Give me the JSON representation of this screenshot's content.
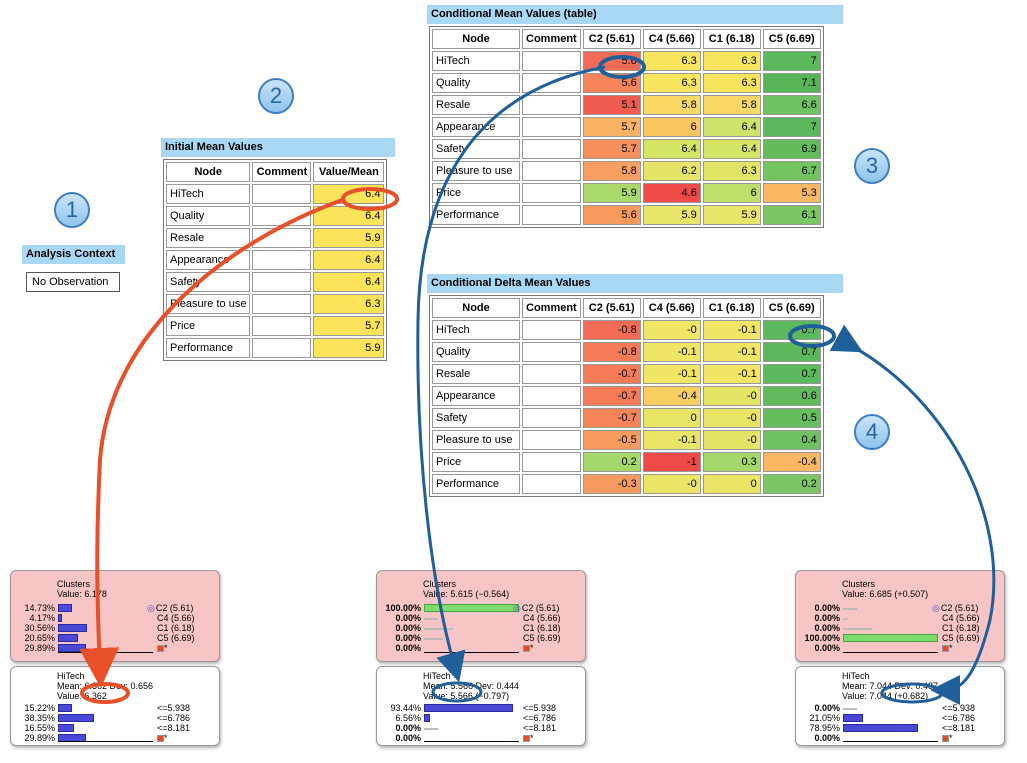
{
  "steps": [
    "1",
    "2",
    "3",
    "4"
  ],
  "analysis_context": {
    "title": "Analysis Context",
    "value": "No Observation"
  },
  "initial_mean": {
    "title": "Initial Mean Values",
    "headers": [
      "Node",
      "Comment",
      "Value/Mean"
    ],
    "rows": [
      {
        "node": "HiTech",
        "comment": "",
        "value": "6.4"
      },
      {
        "node": "Quality",
        "comment": "",
        "value": "6.4"
      },
      {
        "node": "Resale",
        "comment": "",
        "value": "5.9"
      },
      {
        "node": "Appearance",
        "comment": "",
        "value": "6.4"
      },
      {
        "node": "Safety",
        "comment": "",
        "value": "6.4"
      },
      {
        "node": "Pleasure to use",
        "comment": "",
        "value": "6.3"
      },
      {
        "node": "Price",
        "comment": "",
        "value": "5.7"
      },
      {
        "node": "Performance",
        "comment": "",
        "value": "5.9"
      }
    ],
    "value_color": "#fbe45a"
  },
  "cond_mean": {
    "title": "Conditional Mean Values (table)",
    "headers": [
      "Node",
      "Comment",
      "C2 (5.61)",
      "C4 (5.66)",
      "C1 (6.18)",
      "C5 (6.69)"
    ],
    "rows": [
      {
        "node": "HiTech",
        "comment": "",
        "cells": [
          {
            "v": "5.6",
            "c": "#f36b56"
          },
          {
            "v": "6.3",
            "c": "#f8e55e"
          },
          {
            "v": "6.3",
            "c": "#f8e55e"
          },
          {
            "v": "7",
            "c": "#5cb85c"
          }
        ]
      },
      {
        "node": "Quality",
        "comment": "",
        "cells": [
          {
            "v": "5.6",
            "c": "#f5845a"
          },
          {
            "v": "6.3",
            "c": "#f8e55e"
          },
          {
            "v": "6.3",
            "c": "#f8e55e"
          },
          {
            "v": "7.1",
            "c": "#57b457"
          }
        ]
      },
      {
        "node": "Resale",
        "comment": "",
        "cells": [
          {
            "v": "5.1",
            "c": "#ef5b4f"
          },
          {
            "v": "5.8",
            "c": "#f9d963"
          },
          {
            "v": "5.8",
            "c": "#f9d963"
          },
          {
            "v": "6.6",
            "c": "#6fc162"
          }
        ]
      },
      {
        "node": "Appearance",
        "comment": "",
        "cells": [
          {
            "v": "5.7",
            "c": "#f9b263"
          },
          {
            "v": "6",
            "c": "#fac660"
          },
          {
            "v": "6.4",
            "c": "#cde46a"
          },
          {
            "v": "7",
            "c": "#5cb85c"
          }
        ]
      },
      {
        "node": "Safety",
        "comment": "",
        "cells": [
          {
            "v": "5.7",
            "c": "#f78f5c"
          },
          {
            "v": "6.4",
            "c": "#d6e465"
          },
          {
            "v": "6.4",
            "c": "#d6e465"
          },
          {
            "v": "6.9",
            "c": "#63bb5c"
          }
        ]
      },
      {
        "node": "Pleasure to use",
        "comment": "",
        "cells": [
          {
            "v": "5.8",
            "c": "#f79e60"
          },
          {
            "v": "6.2",
            "c": "#e6e466"
          },
          {
            "v": "6.3",
            "c": "#e0e566"
          },
          {
            "v": "6.7",
            "c": "#74c363"
          }
        ]
      },
      {
        "node": "Price",
        "comment": "",
        "cells": [
          {
            "v": "5.9",
            "c": "#a9d96b"
          },
          {
            "v": "4.6",
            "c": "#ee4a47"
          },
          {
            "v": "6",
            "c": "#bee06a"
          },
          {
            "v": "5.3",
            "c": "#fbb864"
          }
        ]
      },
      {
        "node": "Performance",
        "comment": "",
        "cells": [
          {
            "v": "5.6",
            "c": "#f79a5d"
          },
          {
            "v": "5.9",
            "c": "#e8e56a"
          },
          {
            "v": "5.9",
            "c": "#e8e56a"
          },
          {
            "v": "6.1",
            "c": "#7cc665"
          }
        ]
      }
    ]
  },
  "cond_delta": {
    "title": "Conditional Delta Mean Values",
    "headers": [
      "Node",
      "Comment",
      "C2 (5.61)",
      "C4 (5.66)",
      "C1 (6.18)",
      "C5 (6.69)"
    ],
    "rows": [
      {
        "node": "HiTech",
        "comment": "",
        "cells": [
          {
            "v": "-0.8",
            "c": "#f36b56"
          },
          {
            "v": "-0",
            "c": "#f0e666"
          },
          {
            "v": "-0.1",
            "c": "#f0e666"
          },
          {
            "v": "0.7",
            "c": "#5cb85c"
          }
        ]
      },
      {
        "node": "Quality",
        "comment": "",
        "cells": [
          {
            "v": "-0.8",
            "c": "#f47a58"
          },
          {
            "v": "-0.1",
            "c": "#f0e666"
          },
          {
            "v": "-0.1",
            "c": "#f0e666"
          },
          {
            "v": "0.7",
            "c": "#5cb85c"
          }
        ]
      },
      {
        "node": "Resale",
        "comment": "",
        "cells": [
          {
            "v": "-0.7",
            "c": "#f47a58"
          },
          {
            "v": "-0.1",
            "c": "#f0e666"
          },
          {
            "v": "-0.1",
            "c": "#f0e666"
          },
          {
            "v": "0.7",
            "c": "#5cb85c"
          }
        ]
      },
      {
        "node": "Appearance",
        "comment": "",
        "cells": [
          {
            "v": "-0.7",
            "c": "#f47a58"
          },
          {
            "v": "-0.4",
            "c": "#f9cf62"
          },
          {
            "v": "-0",
            "c": "#e6e466"
          },
          {
            "v": "0.6",
            "c": "#62ba5d"
          }
        ]
      },
      {
        "node": "Safety",
        "comment": "",
        "cells": [
          {
            "v": "-0.7",
            "c": "#f58459"
          },
          {
            "v": "0",
            "c": "#e8e566"
          },
          {
            "v": "-0",
            "c": "#e8e566"
          },
          {
            "v": "0.5",
            "c": "#66bd5e"
          }
        ]
      },
      {
        "node": "Pleasure to use",
        "comment": "",
        "cells": [
          {
            "v": "-0.5",
            "c": "#f69a5d"
          },
          {
            "v": "-0.1",
            "c": "#eae566"
          },
          {
            "v": "-0",
            "c": "#e4e466"
          },
          {
            "v": "0.4",
            "c": "#6ec062"
          }
        ]
      },
      {
        "node": "Price",
        "comment": "",
        "cells": [
          {
            "v": "0.2",
            "c": "#a5d86b"
          },
          {
            "v": "-1",
            "c": "#ee4a47"
          },
          {
            "v": "0.3",
            "c": "#a5d86b"
          },
          {
            "v": "-0.4",
            "c": "#fbb864"
          }
        ]
      },
      {
        "node": "Performance",
        "comment": "",
        "cells": [
          {
            "v": "-0.3",
            "c": "#f79a5d"
          },
          {
            "v": "-0",
            "c": "#eae566"
          },
          {
            "v": "0",
            "c": "#eae566"
          },
          {
            "v": "0.2",
            "c": "#7cc665"
          }
        ]
      }
    ]
  },
  "monitors": [
    {
      "clusters": {
        "title": "Clusters",
        "value": "Value: 6.178",
        "rows": [
          {
            "pct": "14.73%",
            "label": "C2 (5.61)",
            "frac": 0.147,
            "style": "bar",
            "bold": false,
            "target": true
          },
          {
            "pct": "4.17%",
            "label": "C4 (5.66)",
            "frac": 0.042,
            "style": "bar",
            "bold": false,
            "target": false
          },
          {
            "pct": "30.56%",
            "label": "C1 (6.18)",
            "frac": 0.306,
            "style": "bar",
            "bold": false,
            "target": false
          },
          {
            "pct": "20.65%",
            "label": "C5 (6.69)",
            "frac": 0.207,
            "style": "bar",
            "bold": false,
            "target": false
          },
          {
            "pct": "29.89%",
            "label": "*",
            "frac": 0.299,
            "style": "bar",
            "bold": false,
            "target": false
          }
        ]
      },
      "hitech": {
        "title": "HiTech",
        "mean": "Mean: 6.362 Dev: 0.656",
        "value": "Value: 6.362",
        "rows": [
          {
            "pct": "15.22%",
            "label": "<=5.938",
            "frac": 0.152,
            "style": "bar",
            "bold": false
          },
          {
            "pct": "38.35%",
            "label": "<=6.786",
            "frac": 0.384,
            "style": "bar",
            "bold": false
          },
          {
            "pct": "16.55%",
            "label": "<=8.181",
            "frac": 0.166,
            "style": "bar",
            "bold": false
          },
          {
            "pct": "29.89%",
            "label": "*",
            "frac": 0.299,
            "style": "bar",
            "bold": false
          }
        ]
      }
    },
    {
      "clusters": {
        "title": "Clusters",
        "value": "Value: 5.615 (−0.564)",
        "rows": [
          {
            "pct": "100.00%",
            "label": "C2 (5.61)",
            "frac": 1.0,
            "style": "green",
            "bold": true,
            "target": true
          },
          {
            "pct": "0.00%",
            "label": "C4 (5.66)",
            "frac": 0.15,
            "style": "ghost",
            "bold": true,
            "target": false
          },
          {
            "pct": "0.00%",
            "label": "C1 (6.18)",
            "frac": 0.3,
            "style": "ghost",
            "bold": true,
            "target": false
          },
          {
            "pct": "0.00%",
            "label": "C5 (6.69)",
            "frac": 0.2,
            "style": "ghost",
            "bold": true,
            "target": false
          },
          {
            "pct": "0.00%",
            "label": "*",
            "frac": 0.0,
            "style": "ghost",
            "bold": true,
            "target": false
          }
        ]
      },
      "hitech": {
        "title": "HiTech",
        "mean": "Mean: 5.566 Dev: 0.444",
        "value": "Value: 5.566 (−0.797)",
        "rows": [
          {
            "pct": "93.44%",
            "label": "<=5.938",
            "frac": 0.934,
            "style": "bar",
            "bold": false
          },
          {
            "pct": "6.56%",
            "label": "<=6.786",
            "frac": 0.066,
            "style": "bar",
            "bold": false
          },
          {
            "pct": "0.00%",
            "label": "<=8.181",
            "frac": 0.15,
            "style": "ghost",
            "bold": true
          },
          {
            "pct": "0.00%",
            "label": "*",
            "frac": 0.0,
            "style": "ghost",
            "bold": true
          }
        ]
      }
    },
    {
      "clusters": {
        "title": "Clusters",
        "value": "Value: 6.685 (+0.507)",
        "rows": [
          {
            "pct": "0.00%",
            "label": "C2 (5.61)",
            "frac": 0.15,
            "style": "ghost",
            "bold": true,
            "target": true
          },
          {
            "pct": "0.00%",
            "label": "C4 (5.66)",
            "frac": 0.05,
            "style": "ghost",
            "bold": true,
            "target": false
          },
          {
            "pct": "0.00%",
            "label": "C1 (6.18)",
            "frac": 0.3,
            "style": "ghost",
            "bold": true,
            "target": false
          },
          {
            "pct": "100.00%",
            "label": "C5 (6.69)",
            "frac": 1.0,
            "style": "green",
            "bold": true,
            "target": false
          },
          {
            "pct": "0.00%",
            "label": "*",
            "frac": 0.0,
            "style": "ghost",
            "bold": true,
            "target": false
          }
        ]
      },
      "hitech": {
        "title": "HiTech",
        "mean": "Mean: 7.044 Dev: 0.487",
        "value": "Value: 7.044 (+0.682)",
        "rows": [
          {
            "pct": "0.00%",
            "label": "<=5.938",
            "frac": 0.15,
            "style": "ghost",
            "bold": true
          },
          {
            "pct": "21.05%",
            "label": "<=6.786",
            "frac": 0.211,
            "style": "bar",
            "bold": false
          },
          {
            "pct": "78.95%",
            "label": "<=8.181",
            "frac": 0.79,
            "style": "bar",
            "bold": false
          },
          {
            "pct": "0.00%",
            "label": "*",
            "frac": 0.0,
            "style": "ghost",
            "bold": true
          }
        ]
      }
    }
  ],
  "colors": {
    "title_bar": "#a8d8f5",
    "arrow_red": "#e8502a",
    "arrow_blue": "#1f5f9a",
    "monitor_top": "#f7c5c5"
  }
}
